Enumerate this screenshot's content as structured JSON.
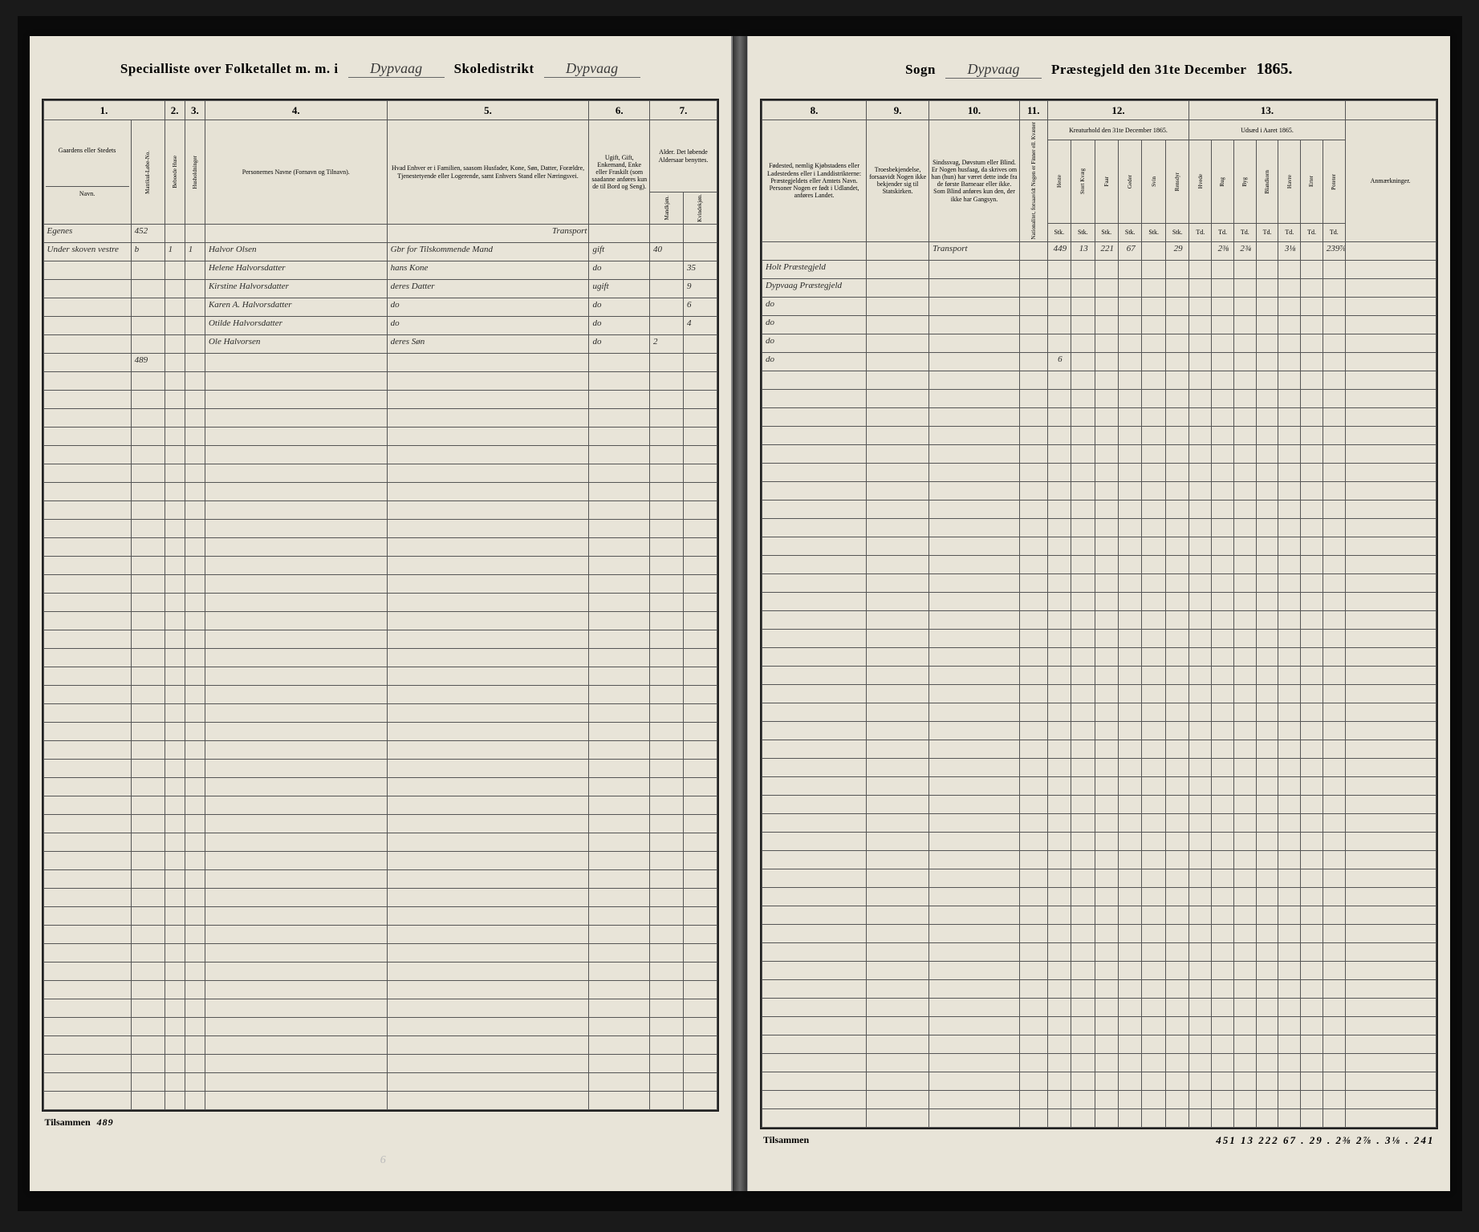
{
  "header": {
    "left": {
      "speclist": "Specialliste over Folketallet m. m. i",
      "parish_script": "Dypvaag",
      "skoled": "Skoledistrikt",
      "skoled_script": "Dypvaag"
    },
    "right": {
      "sogn": "Sogn",
      "sogn_script": "Dypvaag",
      "prae": "Præstegjeld den 31te December",
      "year": "1865."
    }
  },
  "left_cols": {
    "c1": "1.",
    "c2": "2.",
    "c3": "3.",
    "c4": "4.",
    "c5": "5.",
    "c6": "6.",
    "c7": "7.",
    "h1a": "Gaardens eller Stedets",
    "h1b": "Navn.",
    "h1c": "Matrikul-Løbe-No.",
    "h2": "Beboede Huse",
    "h3": "Husholdninger",
    "h4": "Personernes Navne (Fornavn og Tilnavn).",
    "h5": "Hvad Enhver er i Familien, saasom Husfader, Kone, Søn, Datter, Forældre, Tjenestetyende eller Logerende, samt Enhvers Stand eller Næringsvei.",
    "h6": "Ugift, Gift, Enkemand, Enke eller Fraskilt (som saadanne anføres kun de til Bord og Seng).",
    "h7": "Alder. Det løbende Aldersaar benyttes.",
    "h7a": "Mandkjøn.",
    "h7b": "Kvindekjøn."
  },
  "right_cols": {
    "c8": "8.",
    "c9": "9.",
    "c10": "10.",
    "c11": "11.",
    "c12": "12.",
    "c13": "13.",
    "h8": "Fødested, nemlig Kjøbstadens eller Ladestedens eller i Landdistrikterne: Præstegjeldets eller Amtets Navn. Personer Nogen er født i Udlandet, anføres Landet.",
    "h9": "Troesbekjendelse, forsaavidt Nogen ikke bekjender sig til Statskirken.",
    "h10": "Sindssvag, Døvstum eller Blind. Er Nogen husfaag, da skrives om han (hun) har været dette inde fra de første Barneaar eller ikke. Som Blind anføres kun den, der ikke har Gangsyn.",
    "h11": "Nationalitet, forsaavidt Nogen er Finner ell. Kvæner",
    "h12": "Kreaturhold den 31te December 1865.",
    "h13": "Udsæd i Aaret 1865.",
    "h14": "Anmærkninger.",
    "livestock": [
      "Heste",
      "Stort Kvæg",
      "Faar",
      "Geder",
      "Svin",
      "Rensdyr"
    ],
    "crops": [
      "Hvede",
      "Rug",
      "Byg",
      "Blandkorn",
      "Havre",
      "Erter",
      "Poteter"
    ],
    "unit": "Stk.",
    "unit2": "Td."
  },
  "left_rows": [
    {
      "c1": "Egenes",
      "lno": "452",
      "c2": "",
      "c3": "",
      "name": "",
      "role": "",
      "stat": "",
      "m": "",
      "k": "",
      "transport": true
    },
    {
      "c1": "Under skoven vestre",
      "lno": "b",
      "c2": "1",
      "c3": "1",
      "name": "Halvor Olsen",
      "role": "Gbr for Tilskommende Mand",
      "stat": "gift",
      "m": "40",
      "k": ""
    },
    {
      "c1": "",
      "lno": "",
      "c2": "",
      "c3": "",
      "name": "Helene Halvorsdatter",
      "role": "hans Kone",
      "stat": "do",
      "m": "",
      "k": "35"
    },
    {
      "c1": "",
      "lno": "",
      "c2": "",
      "c3": "",
      "name": "Kirstine Halvorsdatter",
      "role": "deres Datter",
      "stat": "ugift",
      "m": "",
      "k": "9"
    },
    {
      "c1": "",
      "lno": "",
      "c2": "",
      "c3": "",
      "name": "Karen A. Halvorsdatter",
      "role": "do",
      "stat": "do",
      "m": "",
      "k": "6"
    },
    {
      "c1": "",
      "lno": "",
      "c2": "",
      "c3": "",
      "name": "Otilde Halvorsdatter",
      "role": "do",
      "stat": "do",
      "m": "",
      "k": "4"
    },
    {
      "c1": "",
      "lno": "",
      "c2": "",
      "c3": "",
      "name": "Ole Halvorsen",
      "role": "deres Søn",
      "stat": "do",
      "m": "2",
      "k": ""
    },
    {
      "c1": "",
      "lno": "489",
      "c2": "",
      "c3": "",
      "name": "",
      "role": "",
      "stat": "",
      "m": "",
      "k": ""
    }
  ],
  "right_rows": [
    {
      "c8": "",
      "c9": "",
      "c10": "Transport",
      "c11": "",
      "l": [
        "449",
        "13",
        "221",
        "67",
        "",
        "29",
        "",
        "2⅜",
        "2¾",
        "",
        "3⅛",
        "",
        "239⅞"
      ]
    },
    {
      "c8": "Holt Præstegjeld",
      "c9": "",
      "c10": "",
      "c11": "",
      "l": [
        "",
        "",
        "",
        "",
        "",
        "",
        "",
        "",
        "",
        "",
        "",
        "",
        ""
      ]
    },
    {
      "c8": "Dypvaag Præstegjeld",
      "c9": "",
      "c10": "",
      "c11": "",
      "l": [
        "",
        "",
        "",
        "",
        "",
        "",
        "",
        "",
        "",
        "",
        "",
        "",
        ""
      ]
    },
    {
      "c8": "do",
      "c9": "",
      "c10": "",
      "c11": "",
      "l": [
        "",
        "",
        "",
        "",
        "",
        "",
        "",
        "",
        "",
        "",
        "",
        "",
        ""
      ]
    },
    {
      "c8": "do",
      "c9": "",
      "c10": "",
      "c11": "",
      "l": [
        "",
        "",
        "",
        "",
        "",
        "",
        "",
        "",
        "",
        "",
        "",
        "",
        ""
      ]
    },
    {
      "c8": "do",
      "c9": "",
      "c10": "",
      "c11": "",
      "l": [
        "",
        "",
        "",
        "",
        "",
        "",
        "",
        "",
        "",
        "",
        "",
        "",
        ""
      ]
    },
    {
      "c8": "do",
      "c9": "",
      "c10": "",
      "c11": "",
      "l": [
        "6",
        "",
        "",
        "",
        "",
        "",
        "",
        "",
        "",
        "",
        "",
        "",
        ""
      ]
    },
    {
      "c8": "",
      "c9": "",
      "c10": "",
      "c11": "",
      "l": [
        "",
        "",
        "",
        "",
        "",
        "",
        "",
        "",
        "",
        "",
        "",
        "",
        ""
      ]
    }
  ],
  "footer": {
    "label": "Tilsammen",
    "left_vals": "489",
    "right_vals": "451  13  222  67  .  29  .  2⅜  2⅞  .  3⅛  .  241"
  },
  "page_num_faint": "6",
  "empty_row_count": 40,
  "colors": {
    "paper": "#e8e4d8",
    "ink": "#2a2a28",
    "rule": "#555555",
    "frame": "#222222",
    "bg": "#1a1a1a"
  }
}
